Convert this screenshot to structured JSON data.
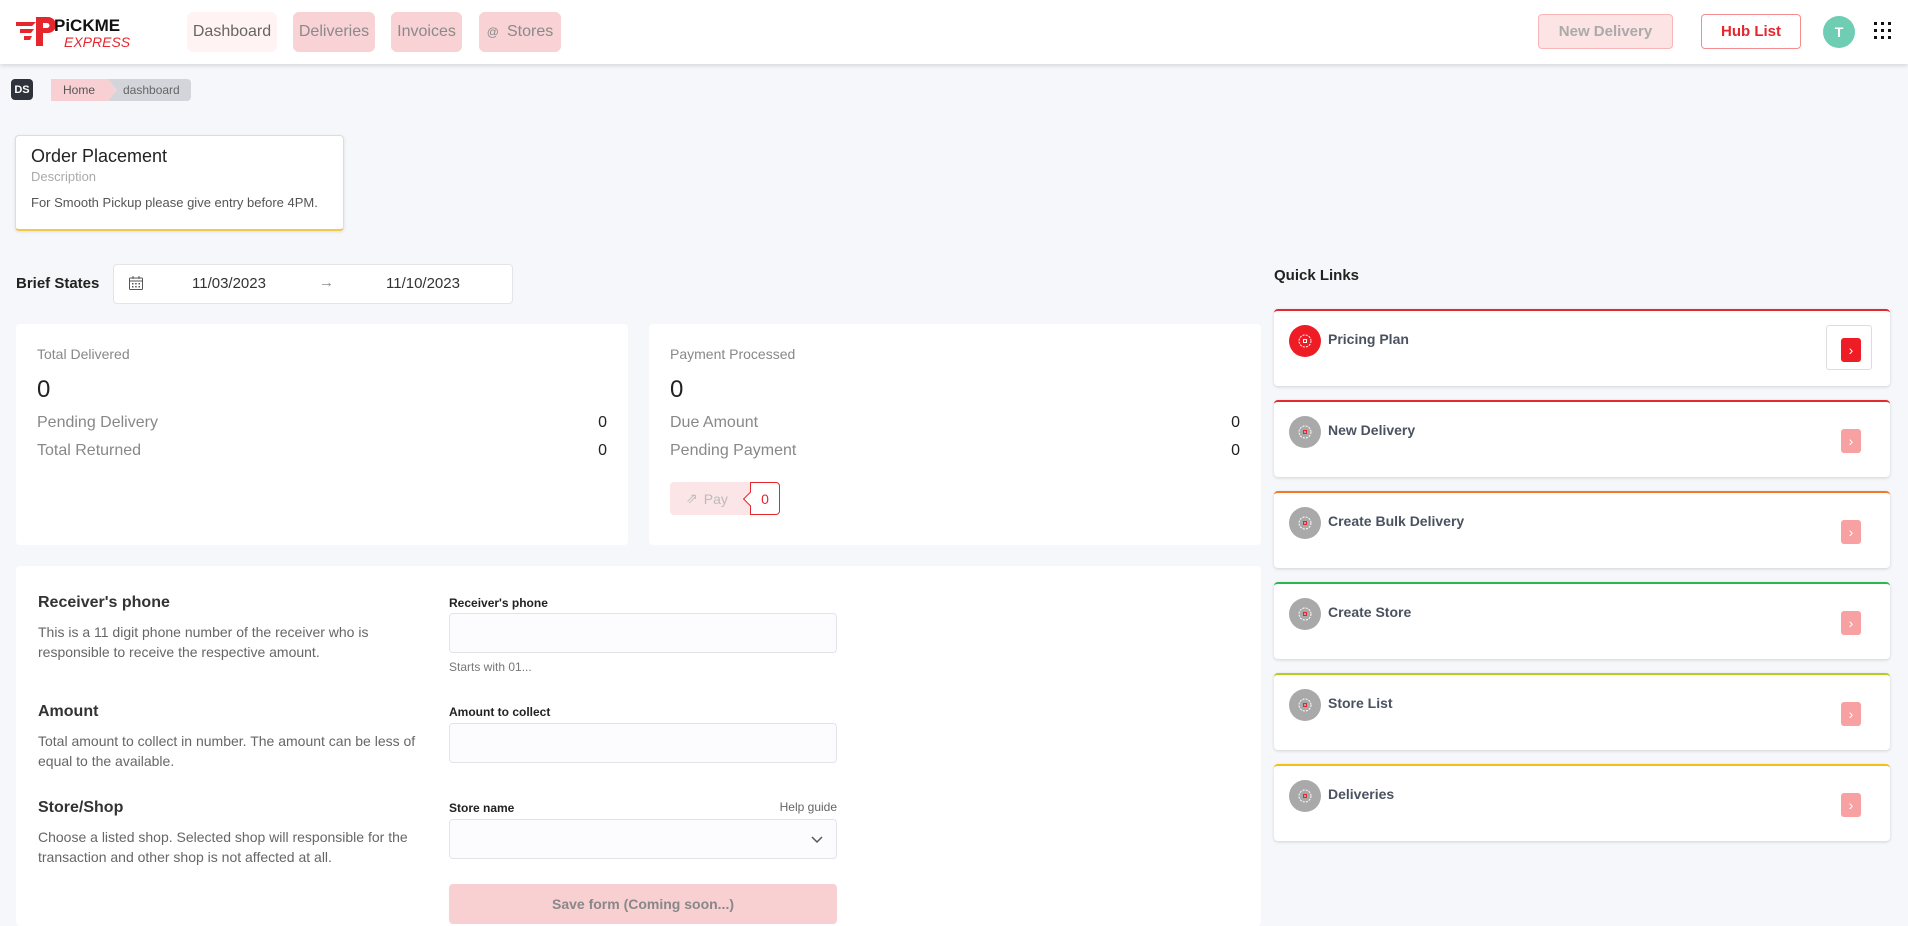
{
  "brand": {
    "logo_text": "PICKME EXPRESS",
    "accent": "#e5262d"
  },
  "nav": [
    {
      "label": "Dashboard",
      "active": true
    },
    {
      "label": "Deliveries"
    },
    {
      "label": "Invoices"
    },
    {
      "label": "Stores",
      "icon": "at-icon",
      "icon_glyph": "@"
    }
  ],
  "header": {
    "new_delivery": "New Delivery",
    "hub_list": "Hub List",
    "avatar": "T",
    "apps_icon": "grid-icon"
  },
  "breadcrumb": {
    "badge": "DS",
    "items": [
      "Home",
      "dashboard"
    ]
  },
  "notice": {
    "title": "Order Placement",
    "subtitle": "Description",
    "text": "For Smooth Pickup please give entry before 4PM."
  },
  "brief": {
    "label": "Brief States",
    "start": "11/03/2023",
    "end": "11/10/2023",
    "arrow": "→"
  },
  "delivery_stats": {
    "label": "Total Delivered",
    "value": "0",
    "rows": [
      {
        "label": "Pending Delivery",
        "value": "0"
      },
      {
        "label": "Total Returned",
        "value": "0"
      }
    ]
  },
  "payment_stats": {
    "label": "Payment Processed",
    "value": "0",
    "rows": [
      {
        "label": "Due Amount",
        "value": "0"
      },
      {
        "label": "Pending Payment",
        "value": "0"
      }
    ],
    "pay_label": "Pay",
    "pay_count": "0"
  },
  "quick_links": {
    "title": "Quick Links",
    "items": [
      {
        "label": "Pricing Plan",
        "color": "#e02b2f",
        "active": true
      },
      {
        "label": "New Delivery",
        "color": "#e02b2f"
      },
      {
        "label": "Create Bulk Delivery",
        "color": "#f07a2a"
      },
      {
        "label": "Create Store",
        "color": "#2cb74c"
      },
      {
        "label": "Store List",
        "color": "#b5cc22"
      },
      {
        "label": "Deliveries",
        "color": "#f5c015"
      }
    ]
  },
  "form": {
    "phone": {
      "heading": "Receiver's phone",
      "desc": "This is a 11 digit phone number of the receiver who is responsible to receive the respective amount.",
      "label": "Receiver's phone",
      "value": "",
      "hint": "Starts with 01..."
    },
    "amount": {
      "heading": "Amount",
      "desc": "Total amount to collect in number. The amount can be less of equal to the available.",
      "label": "Amount to collect",
      "value": ""
    },
    "store": {
      "heading": "Store/Shop",
      "desc": "Choose a listed shop. Selected shop will responsible for the transaction and other shop is not affected at all.",
      "label": "Store name",
      "help": "Help guide",
      "value": ""
    },
    "save": "Save form (Coming soon...)"
  }
}
